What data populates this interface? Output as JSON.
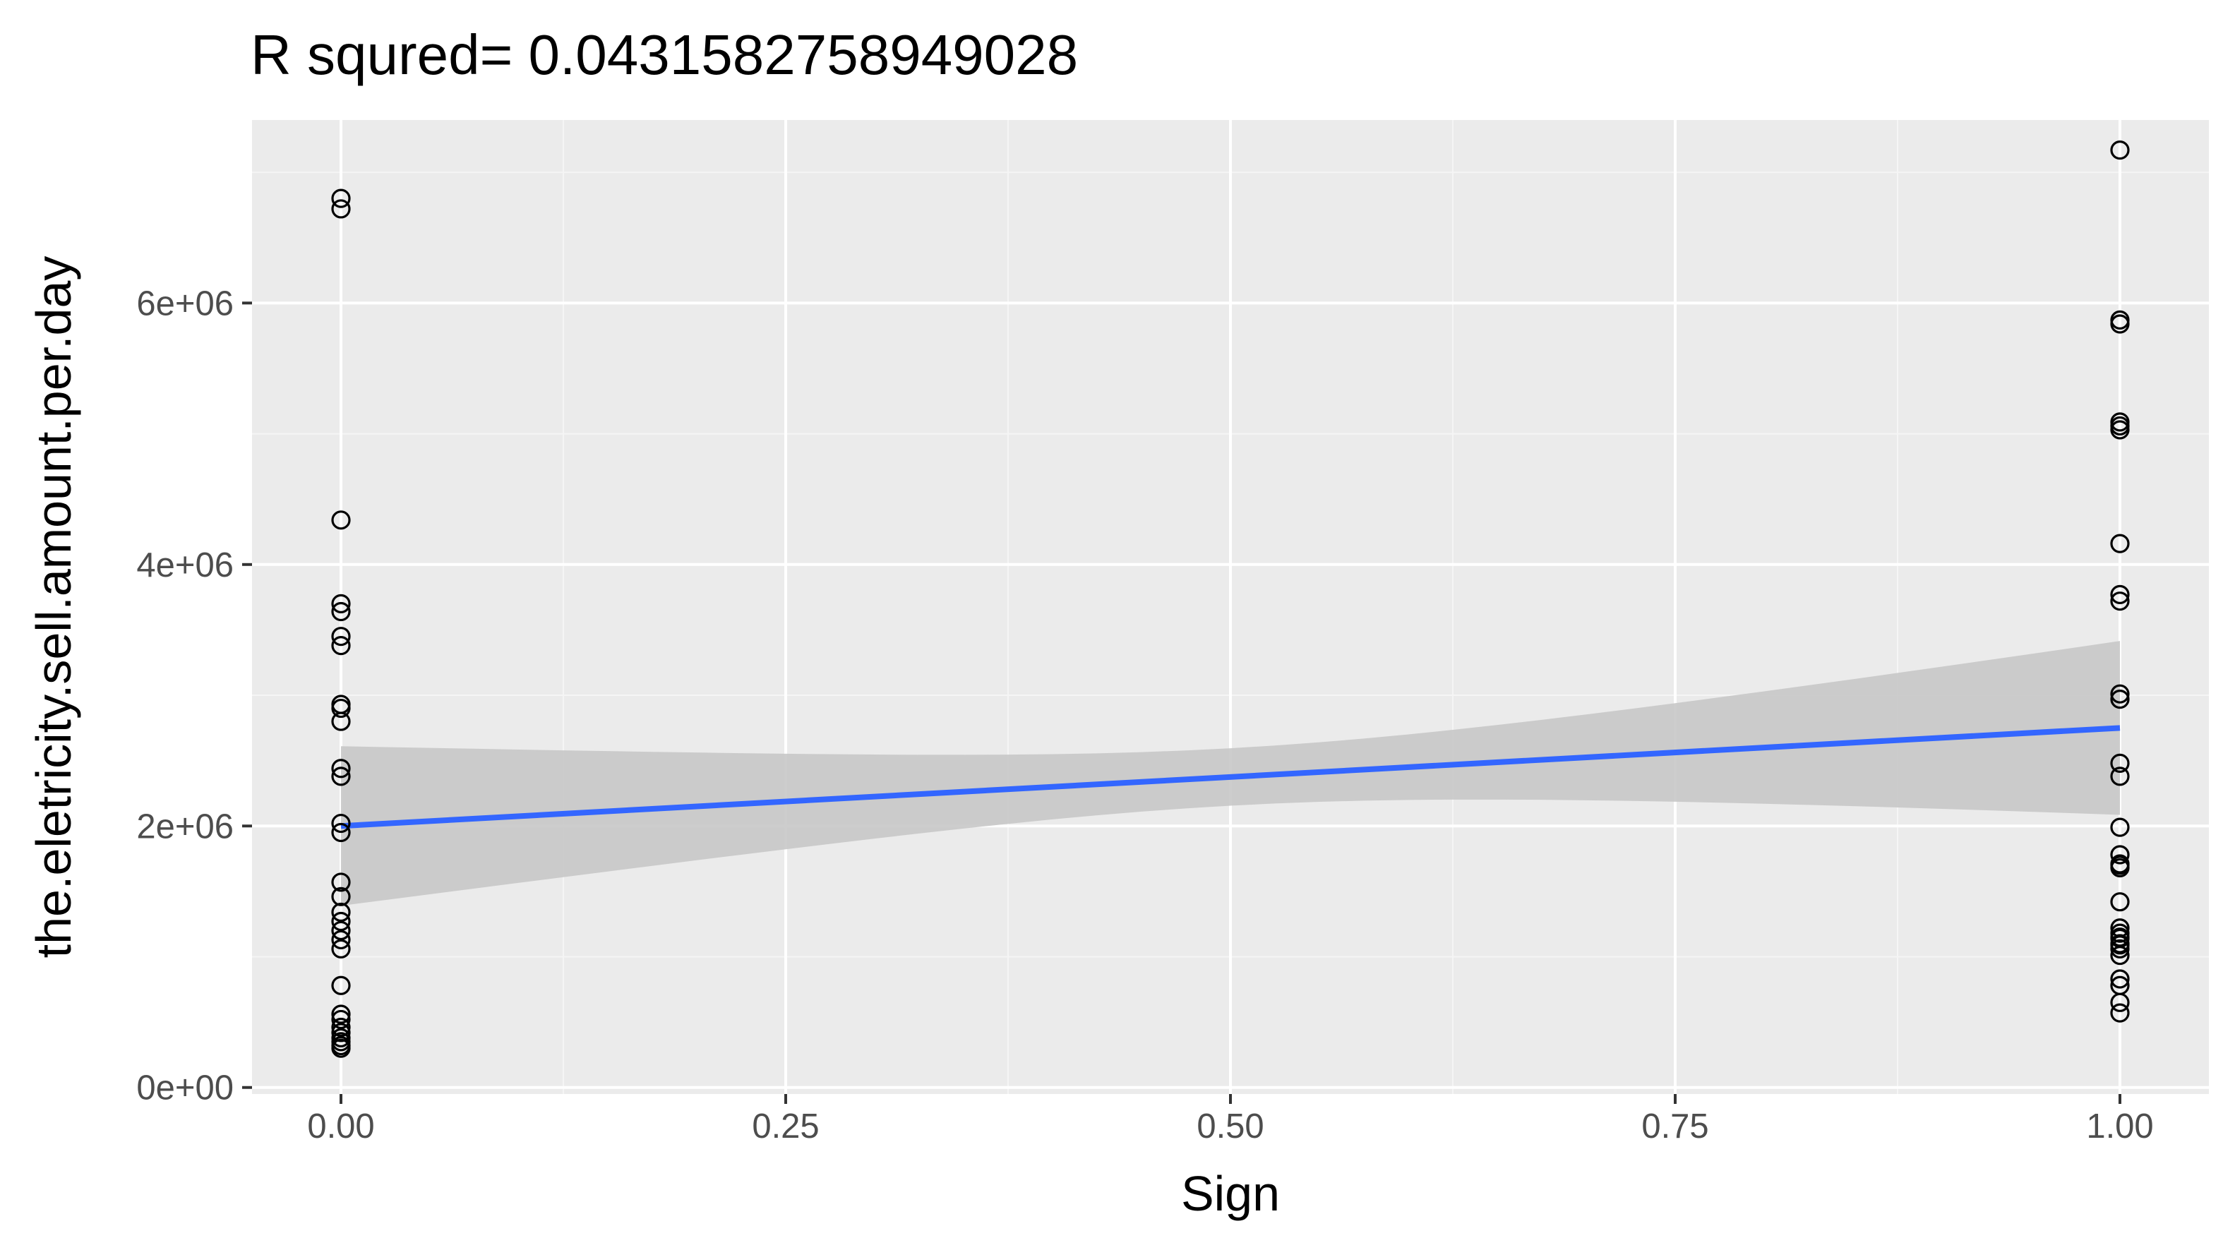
{
  "chart_data": {
    "type": "scatter",
    "title": "R squred= 0.0431582758949028",
    "xlabel": "Sign",
    "ylabel": "the.eletricity.sell.amount.per.day",
    "xlim": [
      -0.05,
      1.05
    ],
    "ylim": [
      -50000,
      7400000
    ],
    "x_ticks": [
      0,
      0.25,
      0.5,
      0.75,
      1
    ],
    "x_tick_labels": [
      "0.00",
      "0.25",
      "0.50",
      "0.75",
      "1.00"
    ],
    "y_ticks": [
      0,
      2000000,
      4000000,
      6000000
    ],
    "y_tick_labels": [
      "0e+00",
      "2e+06",
      "4e+06",
      "6e+06"
    ],
    "grid": true,
    "legend": "none",
    "series": [
      {
        "kind": "points",
        "x": [
          0,
          0,
          0,
          0,
          0,
          0,
          0,
          0,
          0,
          0,
          0,
          0,
          0,
          0,
          0,
          0,
          0,
          0,
          0,
          0,
          0,
          0,
          0,
          0,
          0,
          0,
          0,
          0,
          0,
          0,
          1,
          1,
          1,
          1,
          1,
          1,
          1,
          1,
          1,
          1,
          1,
          1,
          1,
          1,
          1,
          1,
          1,
          1,
          1,
          1,
          1,
          1,
          1,
          1,
          1,
          1,
          1,
          1,
          1,
          1,
          1
        ],
        "y": [
          6800000,
          6720000,
          4340000,
          3700000,
          3640000,
          3450000,
          3380000,
          2930000,
          2900000,
          2800000,
          2440000,
          2380000,
          2020000,
          1950000,
          1570000,
          1460000,
          1340000,
          1270000,
          1200000,
          1130000,
          1060000,
          780000,
          560000,
          520000,
          460000,
          420000,
          380000,
          350000,
          320000,
          300000,
          7170000,
          5870000,
          5840000,
          5090000,
          5060000,
          5030000,
          4160000,
          3770000,
          3720000,
          3010000,
          2970000,
          2480000,
          2380000,
          1990000,
          1780000,
          1710000,
          1680000,
          1420000,
          1220000,
          1180000,
          1140000,
          1100000,
          1060000,
          1010000,
          830000,
          780000,
          650000,
          570000,
          1150000,
          1090000,
          1700000
        ]
      },
      {
        "kind": "smooth",
        "method": "lm",
        "x": [
          0,
          1
        ],
        "y": [
          2000000,
          2750000
        ],
        "se_lower": [
          1400000,
          2090000
        ],
        "se_upper": [
          2620000,
          3420000
        ]
      }
    ]
  },
  "colors": {
    "panel_background": "#ebebeb",
    "grid_major": "#ffffff",
    "grid_minor": "#f5f5f5",
    "line": "#3366ff",
    "ribbon": "#c8c8c8",
    "point_stroke": "#000000",
    "tick_text": "#4d4d4d",
    "tick_mark": "#333333"
  }
}
